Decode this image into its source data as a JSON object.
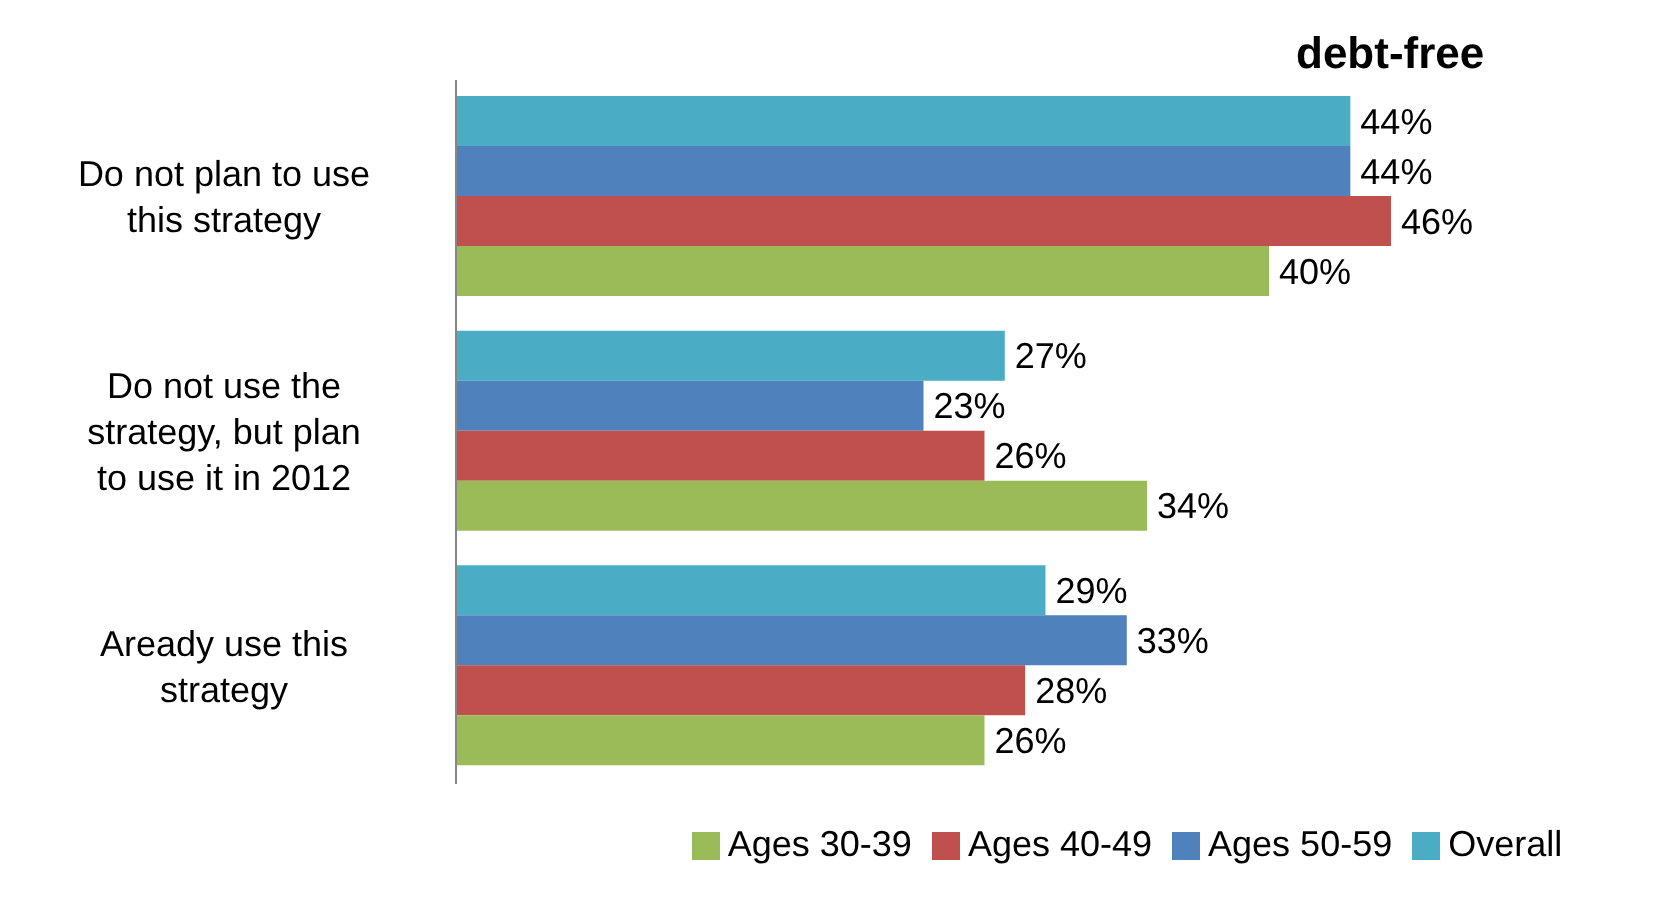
{
  "chart_data": {
    "type": "bar",
    "orientation": "horizontal",
    "title": "debt-free",
    "categories": [
      "Do not plan to use this strategy",
      "Do not use the strategy, but plan to use it in 2012",
      "Aready use this strategy"
    ],
    "series": [
      {
        "name": "Overall",
        "color": "#4bacc6",
        "values": [
          44,
          27,
          29
        ],
        "value_labels": [
          "44%",
          "27%",
          "29%"
        ]
      },
      {
        "name": "Ages 50-59",
        "color": "#4f81bd",
        "values": [
          44,
          23,
          33
        ],
        "value_labels": [
          "44%",
          "23%",
          "33%"
        ]
      },
      {
        "name": "Ages 40-49",
        "color": "#c0504d",
        "values": [
          46,
          26,
          28
        ],
        "value_labels": [
          "46%",
          "26%",
          "28%"
        ]
      },
      {
        "name": "Ages 30-39",
        "color": "#9bbb59",
        "values": [
          40,
          34,
          26
        ],
        "value_labels": [
          "40%",
          "34%",
          "26%"
        ]
      }
    ],
    "legend": "bottom",
    "grid": false
  }
}
